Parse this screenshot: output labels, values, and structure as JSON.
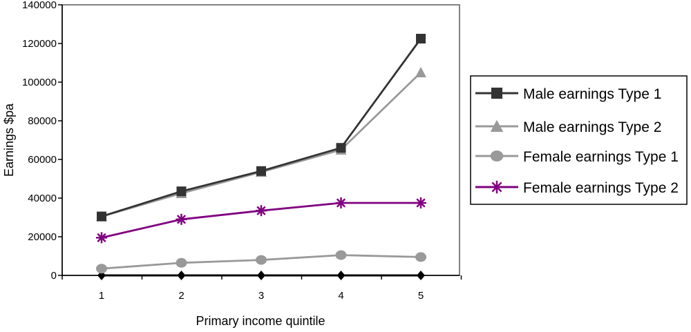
{
  "chart_data": {
    "type": "line",
    "xlabel": "Primary income quintile",
    "ylabel": "Earnings $pa",
    "categories": [
      "1",
      "2",
      "3",
      "4",
      "5"
    ],
    "ylim": [
      0,
      140000
    ],
    "yticks": [
      "0",
      "20000",
      "40000",
      "60000",
      "80000",
      "100000",
      "120000",
      "140000"
    ],
    "grid": false,
    "legend_position": "right",
    "series": [
      {
        "name": "Male earnings Type 1",
        "values": [
          30500,
          43500,
          54000,
          66000,
          122500
        ],
        "color": "#333333",
        "marker": "square"
      },
      {
        "name": "Male earnings Type 2",
        "values": [
          30500,
          42500,
          53500,
          65000,
          105000
        ],
        "color": "#999999",
        "marker": "triangle"
      },
      {
        "name": "Female earnings Type 1",
        "values": [
          3500,
          6500,
          8000,
          10500,
          9500
        ],
        "color": "#999999",
        "marker": "circle"
      },
      {
        "name": "Female earnings Type 2",
        "values": [
          19500,
          29000,
          33500,
          37500,
          37500
        ],
        "color": "#800080",
        "marker": "star"
      },
      {
        "name": "",
        "values": [
          0,
          0,
          0,
          0,
          0
        ],
        "color": "#000000",
        "marker": "diamond"
      }
    ]
  }
}
